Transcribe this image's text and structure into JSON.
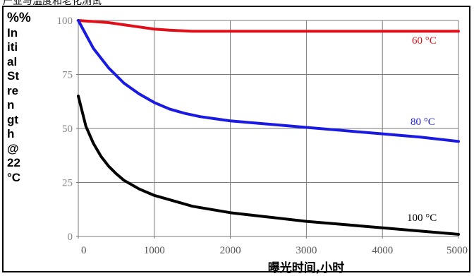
{
  "chart_data": {
    "type": "line",
    "title": "",
    "ylabel_unit": "%%",
    "ylabel": "In\niti\nal\nSt\nre\nn\ngt\nh\n@\n22\n°C",
    "xlabel": "曝光时间,小时",
    "xlim": [
      0,
      5000
    ],
    "ylim": [
      0,
      100
    ],
    "x_ticks": [
      "0",
      "1000",
      "2000",
      "3000",
      "4000",
      "5000"
    ],
    "y_ticks": [
      "0",
      "25",
      "50",
      "75",
      "100"
    ],
    "grid": true,
    "series": [
      {
        "name": "60 °C",
        "color": "#e0101a",
        "x": [
          0,
          200,
          400,
          600,
          800,
          1000,
          1200,
          1500,
          2000,
          3000,
          4000,
          5000
        ],
        "y": [
          100,
          99.5,
          99,
          98,
          97,
          96,
          95.5,
          95,
          95,
          95,
          95,
          95
        ]
      },
      {
        "name": "80 °C",
        "color": "#1a1ae0",
        "x": [
          0,
          200,
          400,
          600,
          800,
          1000,
          1200,
          1400,
          1600,
          1800,
          2000,
          2500,
          3000,
          3500,
          4000,
          4500,
          5000
        ],
        "y": [
          100,
          87,
          78,
          71,
          66,
          62,
          59,
          57,
          55.5,
          54.5,
          53.5,
          52,
          50.5,
          49,
          47.5,
          46,
          44
        ]
      },
      {
        "name": "100 °C",
        "color": "#000000",
        "x": [
          0,
          100,
          200,
          300,
          400,
          500,
          600,
          800,
          1000,
          1200,
          1500,
          2000,
          2500,
          3000,
          3500,
          4000,
          4500,
          5000
        ],
        "y": [
          65,
          51,
          43,
          37,
          32.5,
          29,
          26,
          22,
          19,
          17,
          14,
          11,
          9,
          7,
          5.5,
          4,
          2.5,
          1
        ]
      }
    ]
  },
  "header": {
    "clipped_text": "产业与温度和老化测试"
  }
}
